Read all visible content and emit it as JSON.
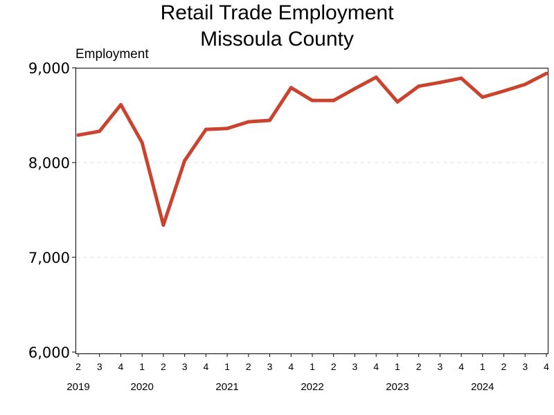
{
  "chart_data": {
    "type": "line",
    "title": [
      "Retail Trade Employment",
      "Missoula County"
    ],
    "ylabel": "Employment",
    "xlabel": "",
    "ylim": [
      6000,
      9000
    ],
    "y_ticks": [
      6000,
      7000,
      8000,
      9000
    ],
    "y_tick_labels": [
      "6,000",
      "7,000",
      "8,000",
      "9,000"
    ],
    "grid": true,
    "line_color": "#c9432f",
    "x": [
      "2019 Q2",
      "2019 Q3",
      "2019 Q4",
      "2020 Q1",
      "2020 Q2",
      "2020 Q3",
      "2020 Q4",
      "2021 Q1",
      "2021 Q2",
      "2021 Q3",
      "2021 Q4",
      "2022 Q1",
      "2022 Q2",
      "2022 Q3",
      "2022 Q4",
      "2023 Q1",
      "2023 Q2",
      "2023 Q3",
      "2023 Q4",
      "2024 Q1",
      "2024 Q2",
      "2024 Q3",
      "2024 Q4"
    ],
    "quarter_labels": [
      "2",
      "3",
      "4",
      "1",
      "2",
      "3",
      "4",
      "1",
      "2",
      "3",
      "4",
      "1",
      "2",
      "3",
      "4",
      "1",
      "2",
      "3",
      "4",
      "1",
      "2",
      "3",
      "4"
    ],
    "year_labels": [
      {
        "label": "2019",
        "index": 0
      },
      {
        "label": "2020",
        "index": 3
      },
      {
        "label": "2021",
        "index": 7
      },
      {
        "label": "2022",
        "index": 11
      },
      {
        "label": "2023",
        "index": 15
      },
      {
        "label": "2024",
        "index": 19
      }
    ],
    "series": [
      {
        "values": [
          8290,
          8330,
          8610,
          8210,
          7340,
          8020,
          8350,
          8360,
          8430,
          8445,
          8790,
          8655,
          8655,
          8780,
          8900,
          8640,
          8805,
          8845,
          8890,
          8690,
          8755,
          8825,
          8940
        ]
      }
    ]
  }
}
